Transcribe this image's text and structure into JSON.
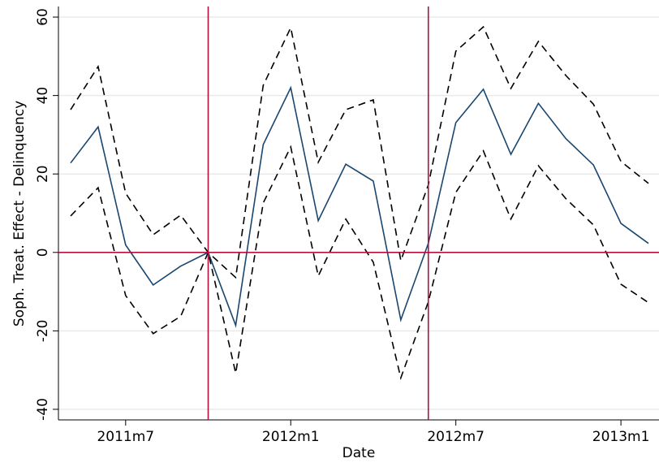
{
  "chart_data": {
    "type": "line",
    "xlabel": "Date",
    "ylabel": "Soph. Treat. Effect - Delinquency",
    "x": [
      "2011m5",
      "2011m6",
      "2011m7",
      "2011m8",
      "2011m9",
      "2011m10",
      "2011m11",
      "2011m12",
      "2012m1",
      "2012m2",
      "2012m3",
      "2012m4",
      "2012m5",
      "2012m6",
      "2012m7",
      "2012m8",
      "2012m9",
      "2012m10",
      "2012m11",
      "2012m12",
      "2013m1",
      "2013m2"
    ],
    "series": [
      {
        "color": "#1a476f",
        "linestyle": "solid",
        "values": [
          22.8,
          32,
          1.9,
          -8.3,
          -3.5,
          0,
          -18.6,
          27.5,
          42,
          8.1,
          22.5,
          18.2,
          -17.2,
          2.3,
          33.1,
          41.6,
          25,
          38,
          29,
          22.3,
          7.4,
          2.3
        ]
      },
      {
        "color": "#000000",
        "linestyle": "dashed",
        "values": [
          36.4,
          47.4,
          15.1,
          4.5,
          9.5,
          0,
          -6.4,
          42.6,
          57.3,
          23,
          36.4,
          38.9,
          -2.1,
          17.2,
          51.3,
          57.5,
          41.8,
          53.8,
          45.1,
          37.8,
          23.2,
          17.6
        ]
      },
      {
        "color": "#000000",
        "linestyle": "dashed",
        "values": [
          9.3,
          16.5,
          -11,
          -20.7,
          -16.3,
          0,
          -30.8,
          12.6,
          26.9,
          -6,
          8.5,
          -2.5,
          -32,
          -12.6,
          15.3,
          25.9,
          8.5,
          22.1,
          13.7,
          7,
          -8.1,
          -12.8
        ]
      }
    ],
    "xlim": [
      "2011m5",
      "2013m2"
    ],
    "xticks": [
      "2011m7",
      "2012m1",
      "2012m7",
      "2013m1"
    ],
    "ylim": [
      -42.7,
      62.7
    ],
    "yticks": [
      -40,
      -20,
      0,
      20,
      40,
      60
    ],
    "grid": true,
    "xlines": [
      "2011m10",
      "2012m6"
    ],
    "ylines": [
      0
    ],
    "refline_color": "#b5103c"
  }
}
